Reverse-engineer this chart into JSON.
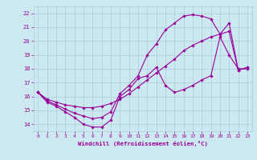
{
  "xlabel": "Windchill (Refroidissement éolien,°C)",
  "bg_color": "#cce8f0",
  "grid_color": "#aaccdd",
  "line_color": "#990099",
  "xlim": [
    -0.5,
    23.5
  ],
  "ylim": [
    13.5,
    22.5
  ],
  "yticks": [
    14,
    15,
    16,
    17,
    18,
    19,
    20,
    21,
    22
  ],
  "xticks": [
    0,
    1,
    2,
    3,
    4,
    5,
    6,
    7,
    8,
    9,
    10,
    11,
    12,
    13,
    14,
    15,
    16,
    17,
    18,
    19,
    20,
    21,
    22,
    23
  ],
  "line1_x": [
    0,
    1,
    2,
    3,
    4,
    5,
    6,
    7,
    8,
    9,
    10,
    11,
    12,
    13,
    14,
    15,
    16,
    17,
    18,
    19,
    20,
    21,
    22,
    23
  ],
  "line1_y": [
    16.3,
    15.6,
    15.3,
    14.9,
    14.5,
    14.0,
    13.8,
    13.8,
    14.3,
    16.0,
    16.5,
    17.3,
    17.5,
    18.1,
    16.8,
    16.3,
    16.5,
    16.8,
    17.2,
    17.5,
    20.3,
    19.0,
    18.0,
    18.0
  ],
  "line2_x": [
    0,
    1,
    2,
    3,
    4,
    5,
    6,
    7,
    8,
    9,
    10,
    11,
    12,
    13,
    14,
    15,
    16,
    17,
    18,
    19,
    20,
    21,
    22,
    23
  ],
  "line2_y": [
    16.3,
    15.7,
    15.4,
    15.1,
    14.8,
    14.6,
    14.4,
    14.5,
    14.9,
    16.2,
    16.8,
    17.5,
    19.0,
    19.8,
    20.8,
    21.3,
    21.8,
    21.9,
    21.8,
    21.6,
    20.5,
    21.3,
    17.9,
    18.1
  ],
  "line3_x": [
    0,
    1,
    2,
    3,
    4,
    5,
    6,
    7,
    8,
    9,
    10,
    11,
    12,
    13,
    14,
    15,
    16,
    17,
    18,
    19,
    20,
    21,
    22,
    23
  ],
  "line3_y": [
    16.3,
    15.8,
    15.6,
    15.4,
    15.3,
    15.2,
    15.2,
    15.3,
    15.5,
    15.8,
    16.2,
    16.7,
    17.2,
    17.7,
    18.2,
    18.7,
    19.3,
    19.7,
    20.0,
    20.3,
    20.5,
    20.7,
    17.9,
    18.1
  ]
}
